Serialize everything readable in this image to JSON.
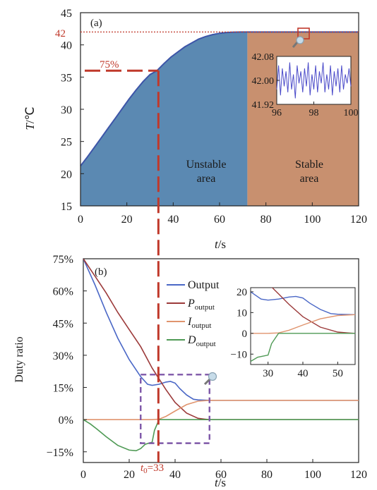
{
  "colors": {
    "stable_fill": "#c8906f",
    "unstable_fill": "#5b89b2",
    "temp_curve": "#3d55a8",
    "output": "#4a67c6",
    "p_output": "#9c3a3a",
    "i_output": "#e0946e",
    "d_output": "#4f9a55",
    "marker_red": "#c0392b",
    "zoom_box": "#7e57a8",
    "inset_signal": "#4b4bc9"
  },
  "icons": [
    "magnifier-icon",
    "magnifier-icon"
  ],
  "chart_data": [
    {
      "id": "a",
      "type": "area",
      "panel_label": "(a)",
      "xlabel": "t/s",
      "ylabel": "T/℃",
      "xlim": [
        0,
        120
      ],
      "ylim": [
        15,
        45
      ],
      "xticks": [
        "0",
        "20",
        "40",
        "60",
        "80",
        "100",
        "120"
      ],
      "yticks": [
        "15",
        "20",
        "25",
        "30",
        "35",
        "40",
        "45"
      ],
      "grid": false,
      "regions": [
        {
          "label": "Unstable\narea",
          "x_range": [
            0,
            72
          ],
          "color": "#5b89b2"
        },
        {
          "label": "Stable\narea",
          "x_range": [
            72,
            120
          ],
          "color": "#c8906f"
        }
      ],
      "series": [
        {
          "x": [
            0,
            3,
            6,
            9,
            12,
            15,
            18,
            21,
            24,
            27,
            30,
            33,
            36,
            39,
            42,
            45,
            48,
            51,
            54,
            57,
            60,
            63,
            66,
            69,
            72,
            78,
            84,
            90,
            96,
            102,
            108,
            114,
            120
          ],
          "y": [
            21.2,
            22.6,
            24.1,
            25.6,
            27.1,
            28.6,
            30.1,
            31.6,
            33.0,
            34.3,
            35.4,
            36.0,
            37.1,
            38.1,
            38.9,
            39.7,
            40.3,
            40.9,
            41.3,
            41.6,
            41.8,
            41.92,
            41.98,
            42.0,
            42.0,
            42.0,
            42.0,
            42.0,
            42.0,
            42.0,
            42.0,
            42.0,
            42.0
          ]
        }
      ],
      "annotations": [
        {
          "text": "42",
          "y": 42
        },
        {
          "text": "75%",
          "y": 36
        }
      ],
      "inset": {
        "xlim": [
          96,
          100
        ],
        "ylim": [
          41.92,
          42.08
        ],
        "xticks": [
          "96",
          "98",
          "100"
        ],
        "yticks": [
          "42.08",
          "42.00",
          "41.92"
        ],
        "series": [
          {
            "x": [
              96.0,
              96.1,
              96.2,
              96.3,
              96.4,
              96.5,
              96.6,
              96.7,
              96.8,
              96.9,
              97.0,
              97.1,
              97.2,
              97.3,
              97.4,
              97.5,
              97.6,
              97.7,
              97.8,
              97.9,
              98.0,
              98.1,
              98.2,
              98.3,
              98.4,
              98.5,
              98.6,
              98.7,
              98.8,
              98.9,
              99.0,
              99.1,
              99.2,
              99.3,
              99.4,
              99.5,
              99.6,
              99.7,
              99.8,
              99.9,
              100.0
            ],
            "y": [
              41.97,
              42.05,
              41.95,
              42.04,
              41.98,
              42.03,
              41.96,
              42.06,
              41.97,
              42.02,
              41.94,
              42.05,
              41.99,
              42.03,
              41.96,
              42.04,
              41.98,
              42.06,
              41.95,
              42.02,
              41.97,
              42.05,
              41.96,
              42.03,
              41.99,
              42.06,
              41.96,
              42.02,
              41.97,
              42.05,
              41.95,
              42.03,
              41.98,
              42.04,
              41.96,
              42.05,
              41.97,
              42.02,
              41.99,
              42.04,
              41.98
            ]
          }
        ]
      }
    },
    {
      "id": "b",
      "type": "line",
      "panel_label": "(b)",
      "xlabel": "t/s",
      "ylabel": "Duty ratio",
      "xlim": [
        0,
        120
      ],
      "ylim": [
        -20,
        75
      ],
      "xticks": [
        "0",
        "20",
        "40",
        "60",
        "80",
        "100",
        "120"
      ],
      "yticks": [
        "75%",
        "60%",
        "45%",
        "30%",
        "15%",
        "0%",
        "−15%"
      ],
      "ytick_values": [
        75,
        60,
        45,
        30,
        15,
        0,
        -15
      ],
      "grid": false,
      "annotations": [
        {
          "text": "t₀=33",
          "x": 33
        }
      ],
      "series": [
        {
          "name": "Output",
          "x": [
            0,
            5,
            10,
            15,
            20,
            25,
            28,
            30,
            33,
            36,
            38,
            40,
            42,
            45,
            48,
            50,
            55,
            60,
            120
          ],
          "y": [
            75,
            63,
            50,
            38,
            28,
            20,
            16.5,
            16,
            16.5,
            17.5,
            17.8,
            17,
            14.5,
            11.5,
            9.5,
            9.2,
            9,
            9,
            9
          ]
        },
        {
          "name": "P_output",
          "x": [
            0,
            5,
            10,
            15,
            20,
            25,
            30,
            33,
            36,
            40,
            45,
            50,
            53,
            55,
            120
          ],
          "y": [
            75,
            67,
            59,
            50,
            42,
            34,
            24,
            19,
            14,
            8,
            3,
            0.6,
            0.2,
            0,
            0
          ]
        },
        {
          "name": "I_output",
          "x": [
            0,
            30,
            33,
            36,
            40,
            45,
            50,
            55,
            60,
            120
          ],
          "y": [
            0,
            0,
            0.2,
            1.5,
            4,
            7,
            8.6,
            9,
            9,
            9
          ]
        },
        {
          "name": "D_output",
          "x": [
            0,
            3,
            6,
            10,
            15,
            20,
            23,
            25,
            27,
            30,
            31,
            33,
            35,
            120
          ],
          "y": [
            0,
            -2,
            -4.5,
            -8,
            -12,
            -14.2,
            -14.5,
            -13.5,
            -11.5,
            -10.5,
            -5,
            0,
            0,
            0
          ]
        }
      ],
      "legend": {
        "placement": "center-right",
        "entries": [
          {
            "name": "Output",
            "sub": ""
          },
          {
            "name": "P",
            "sub": "output"
          },
          {
            "name": "I",
            "sub": "output"
          },
          {
            "name": "D",
            "sub": "output"
          }
        ]
      },
      "inset": {
        "xlim": [
          25,
          55
        ],
        "ylim": [
          -15,
          22
        ],
        "xticks": [
          "30",
          "40",
          "50"
        ],
        "yticks": [
          "20",
          "10",
          "0",
          "−10"
        ],
        "ytick_values": [
          20,
          10,
          0,
          -10
        ]
      }
    }
  ]
}
